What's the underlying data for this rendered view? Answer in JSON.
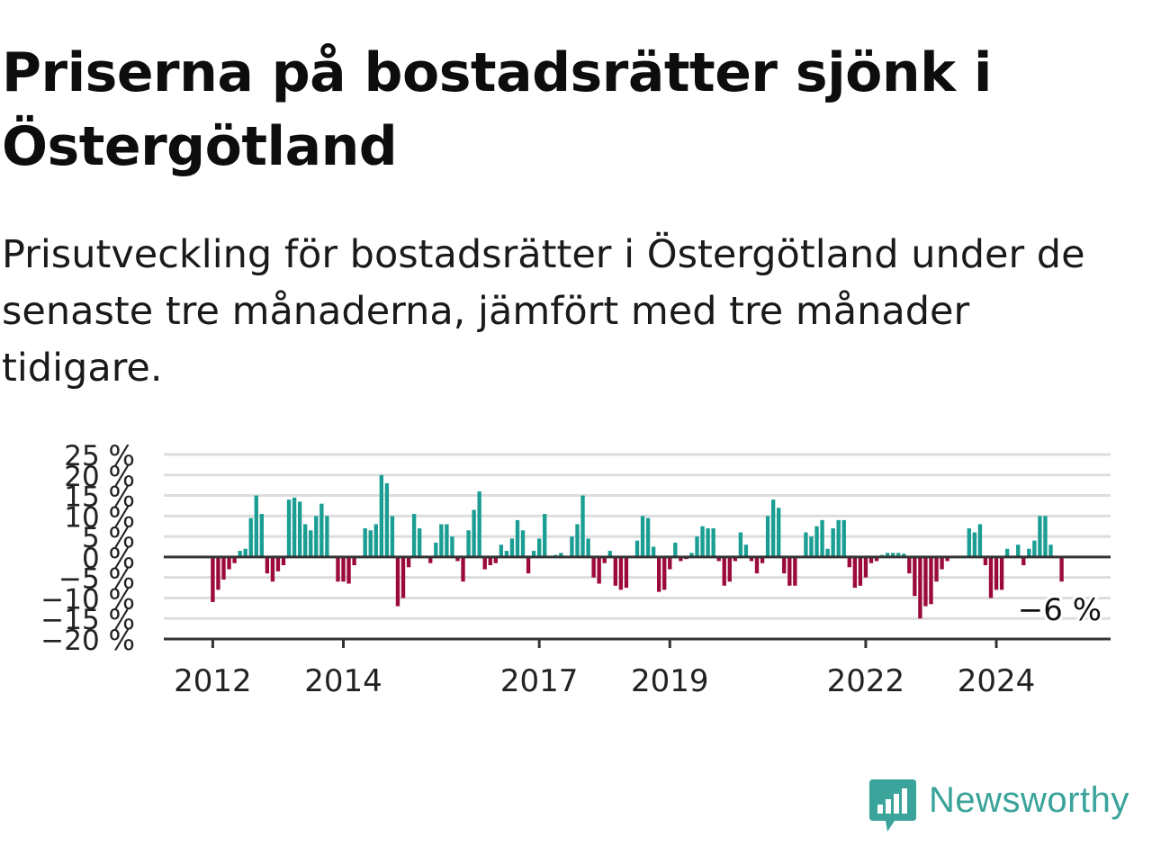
{
  "title": "Priserna på bostadsrätter sjönk i Östergötland",
  "subtitle": "Prisutveckling för bostadsrätter i Östergötland under de senaste tre månaderna, jämfört med tre månader tidigare.",
  "brand": {
    "name": "Newsworthy",
    "logo_icon": "bar-chart-speech-bubble-icon"
  },
  "colors": {
    "positive": "#1a9e93",
    "negative": "#9c0a3d",
    "grid": "#dddddd",
    "axis": "#333333",
    "brand": "#3aa39a"
  },
  "chart_data": {
    "type": "bar",
    "title": "Priserna på bostadsrätter sjönk i Östergötland",
    "subtitle": "Prisutveckling för bostadsrätter i Östergötland under de senaste tre månaderna, jämfört med tre månader tidigare.",
    "x_start": "2012-01",
    "x_end": "2024-09",
    "xlim": [
      "2011-04",
      "2025-10"
    ],
    "x_ticks": [
      {
        "label": "2012",
        "date": "2012-01"
      },
      {
        "label": "2014",
        "date": "2014-01"
      },
      {
        "label": "2017",
        "date": "2017-01"
      },
      {
        "label": "2019",
        "date": "2019-01"
      },
      {
        "label": "2022",
        "date": "2022-01"
      },
      {
        "label": "2024",
        "date": "2024-01"
      }
    ],
    "y_ticks": [
      {
        "label": "25 %",
        "value": 25
      },
      {
        "label": "20 %",
        "value": 20
      },
      {
        "label": "15 %",
        "value": 15
      },
      {
        "label": "10 %",
        "value": 10
      },
      {
        "label": "5 %",
        "value": 5
      },
      {
        "label": "0 %",
        "value": 0
      },
      {
        "label": "−5 %",
        "value": -5
      },
      {
        "label": "−10 %",
        "value": -10
      },
      {
        "label": "−15 %",
        "value": -15
      },
      {
        "label": "−20 %",
        "value": -20
      }
    ],
    "ylim": [
      -20,
      25
    ],
    "grid": true,
    "values": [
      -11,
      -8,
      -5.5,
      -3,
      -1.5,
      1.5,
      2,
      9.5,
      15,
      10.5,
      -4,
      -6,
      -3.5,
      -2,
      14,
      14.5,
      13.5,
      8,
      6.5,
      10,
      13,
      10,
      0,
      -6,
      -6,
      -6.5,
      -2,
      0,
      7,
      6.5,
      8,
      20,
      18,
      10,
      -12,
      -10,
      -2.5,
      10.5,
      7,
      0,
      -1.5,
      3.5,
      8,
      8,
      5,
      -1,
      -6,
      6.5,
      11.5,
      16,
      -3,
      -2,
      -1.5,
      3,
      1.5,
      4.5,
      9,
      6.5,
      -4,
      1.5,
      4.5,
      10.5,
      0,
      0.5,
      1,
      0,
      5,
      8,
      15,
      4.5,
      -5,
      -6.5,
      -1.5,
      1.5,
      -7,
      -8,
      -7.5,
      0,
      4,
      10,
      9.5,
      2.5,
      -8.5,
      -8,
      -3,
      3.5,
      -1,
      -0.5,
      1,
      5,
      7.5,
      7,
      7,
      -1,
      -7,
      -6,
      -1,
      6,
      3,
      -1,
      -4,
      -1.5,
      10,
      14,
      12,
      -4,
      -7,
      -7,
      0,
      6,
      5,
      7.5,
      9,
      2,
      7,
      9,
      9,
      -2.5,
      -7.5,
      -7,
      -5,
      -1.5,
      -1,
      0.5,
      1,
      1,
      1,
      0.8,
      -4,
      -9.5,
      -15,
      -12,
      -11.5,
      -6,
      -3,
      -1,
      0,
      0,
      0,
      7,
      6,
      8,
      -2,
      -10,
      -8,
      -8,
      2,
      0,
      3,
      -2,
      2,
      4,
      10,
      10,
      3,
      0,
      -6
    ],
    "annotation": {
      "label": "−6 %",
      "value": -6
    }
  }
}
